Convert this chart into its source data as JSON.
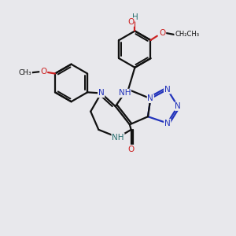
{
  "bg_color": "#e8e8ec",
  "bond_color": "#111111",
  "bond_width": 1.6,
  "n_color": "#2233bb",
  "o_color": "#cc2222",
  "teal_color": "#2a7070",
  "fs_main": 7.5,
  "fs_sub": 6.5,
  "fig_w": 3.0,
  "fig_h": 3.0,
  "dpi": 100,
  "xlim": [
    0,
    10
  ],
  "ylim": [
    0,
    10
  ]
}
